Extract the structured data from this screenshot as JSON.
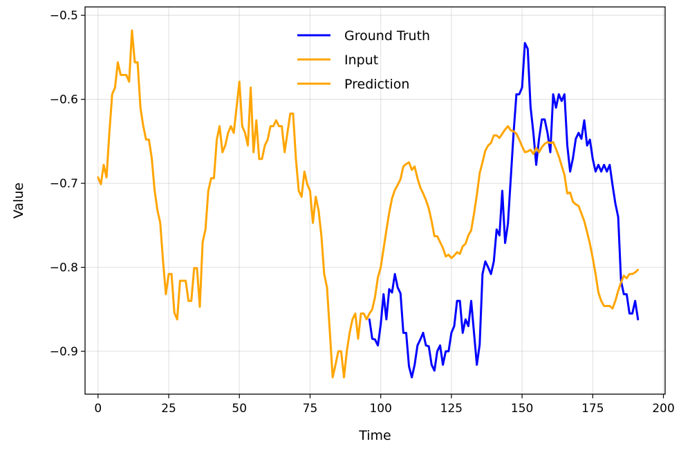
{
  "chart_data": {
    "type": "line",
    "title": "",
    "xlabel": "Time",
    "ylabel": "Value",
    "xlim": [
      -4.6,
      200.6
    ],
    "ylim": [
      -0.951,
      -0.49
    ],
    "xticks": [
      0,
      25,
      50,
      75,
      100,
      125,
      150,
      175,
      200
    ],
    "xtick_labels": [
      "0",
      "25",
      "50",
      "75",
      "100",
      "125",
      "150",
      "175",
      "200"
    ],
    "yticks": [
      -0.9,
      -0.8,
      -0.7,
      -0.6,
      -0.5
    ],
    "ytick_labels": [
      "−0.9",
      "−0.8",
      "−0.7",
      "−0.6",
      "−0.5"
    ],
    "grid": true,
    "legend_position": "upper center",
    "series": [
      {
        "name": "Ground Truth",
        "color": "#0000ff",
        "x": [
          96,
          97,
          98,
          99,
          100,
          101,
          102,
          103,
          104,
          105,
          106,
          107,
          108,
          109,
          110,
          111,
          112,
          113,
          114,
          115,
          116,
          117,
          118,
          119,
          120,
          121,
          122,
          123,
          124,
          125,
          126,
          127,
          128,
          129,
          130,
          131,
          132,
          133,
          134,
          135,
          136,
          137,
          138,
          139,
          140,
          141,
          142,
          143,
          144,
          145,
          146,
          147,
          148,
          149,
          150,
          151,
          152,
          153,
          154,
          155,
          156,
          157,
          158,
          159,
          160,
          161,
          162,
          163,
          164,
          165,
          166,
          167,
          168,
          169,
          170,
          171,
          172,
          173,
          174,
          175,
          176,
          177,
          178,
          179,
          180,
          181,
          182,
          183,
          184,
          185,
          186,
          187,
          188,
          189,
          190,
          191
        ],
        "y": [
          -0.862,
          -0.885,
          -0.886,
          -0.893,
          -0.868,
          -0.832,
          -0.862,
          -0.826,
          -0.83,
          -0.808,
          -0.824,
          -0.831,
          -0.878,
          -0.878,
          -0.918,
          -0.931,
          -0.916,
          -0.893,
          -0.886,
          -0.878,
          -0.893,
          -0.894,
          -0.916,
          -0.923,
          -0.9,
          -0.893,
          -0.916,
          -0.9,
          -0.9,
          -0.878,
          -0.87,
          -0.84,
          -0.84,
          -0.878,
          -0.862,
          -0.87,
          -0.84,
          -0.878,
          -0.916,
          -0.892,
          -0.808,
          -0.793,
          -0.8,
          -0.808,
          -0.793,
          -0.755,
          -0.762,
          -0.709,
          -0.771,
          -0.748,
          -0.694,
          -0.64,
          -0.594,
          -0.594,
          -0.586,
          -0.533,
          -0.54,
          -0.609,
          -0.64,
          -0.678,
          -0.647,
          -0.624,
          -0.624,
          -0.64,
          -0.663,
          -0.594,
          -0.61,
          -0.594,
          -0.602,
          -0.594,
          -0.655,
          -0.686,
          -0.67,
          -0.647,
          -0.64,
          -0.647,
          -0.625,
          -0.655,
          -0.648,
          -0.671,
          -0.686,
          -0.678,
          -0.686,
          -0.678,
          -0.686,
          -0.678,
          -0.702,
          -0.724,
          -0.74,
          -0.816,
          -0.832,
          -0.832,
          -0.855,
          -0.855,
          -0.84,
          -0.862
        ]
      },
      {
        "name": "Input",
        "color": "#ffa500",
        "x": [
          0,
          1,
          2,
          3,
          4,
          5,
          6,
          7,
          8,
          9,
          10,
          11,
          12,
          13,
          14,
          15,
          16,
          17,
          18,
          19,
          20,
          21,
          22,
          23,
          24,
          25,
          26,
          27,
          28,
          29,
          30,
          31,
          32,
          33,
          34,
          35,
          36,
          37,
          38,
          39,
          40,
          41,
          42,
          43,
          44,
          45,
          46,
          47,
          48,
          49,
          50,
          51,
          52,
          53,
          54,
          55,
          56,
          57,
          58,
          59,
          60,
          61,
          62,
          63,
          64,
          65,
          66,
          67,
          68,
          69,
          70,
          71,
          72,
          73,
          74,
          75,
          76,
          77,
          78,
          79,
          80,
          81,
          82,
          83,
          84,
          85,
          86,
          87,
          88,
          89,
          90,
          91,
          92,
          93,
          94,
          95,
          96
        ],
        "y": [
          -0.693,
          -0.701,
          -0.678,
          -0.693,
          -0.64,
          -0.594,
          -0.586,
          -0.556,
          -0.571,
          -0.571,
          -0.571,
          -0.579,
          -0.518,
          -0.556,
          -0.556,
          -0.61,
          -0.632,
          -0.648,
          -0.648,
          -0.67,
          -0.708,
          -0.732,
          -0.747,
          -0.793,
          -0.832,
          -0.808,
          -0.808,
          -0.854,
          -0.862,
          -0.816,
          -0.816,
          -0.816,
          -0.84,
          -0.84,
          -0.801,
          -0.801,
          -0.847,
          -0.77,
          -0.755,
          -0.709,
          -0.694,
          -0.694,
          -0.648,
          -0.632,
          -0.663,
          -0.655,
          -0.64,
          -0.632,
          -0.64,
          -0.61,
          -0.579,
          -0.632,
          -0.64,
          -0.655,
          -0.586,
          -0.663,
          -0.625,
          -0.671,
          -0.671,
          -0.655,
          -0.648,
          -0.632,
          -0.632,
          -0.625,
          -0.632,
          -0.632,
          -0.663,
          -0.64,
          -0.617,
          -0.617,
          -0.671,
          -0.709,
          -0.716,
          -0.686,
          -0.701,
          -0.709,
          -0.747,
          -0.716,
          -0.732,
          -0.762,
          -0.808,
          -0.824,
          -0.877,
          -0.931,
          -0.916,
          -0.9,
          -0.9,
          -0.931,
          -0.9,
          -0.878,
          -0.862,
          -0.855,
          -0.885,
          -0.855,
          -0.855,
          -0.862,
          -0.855
        ]
      },
      {
        "name": "Prediction",
        "color": "#ffa500",
        "x": [
          96,
          97,
          98,
          99,
          100,
          101,
          102,
          103,
          104,
          105,
          106,
          107,
          108,
          109,
          110,
          111,
          112,
          113,
          114,
          115,
          116,
          117,
          118,
          119,
          120,
          121,
          122,
          123,
          124,
          125,
          126,
          127,
          128,
          129,
          130,
          131,
          132,
          133,
          134,
          135,
          136,
          137,
          138,
          139,
          140,
          141,
          142,
          143,
          144,
          145,
          146,
          147,
          148,
          149,
          150,
          151,
          152,
          153,
          154,
          155,
          156,
          157,
          158,
          159,
          160,
          161,
          162,
          163,
          164,
          165,
          166,
          167,
          168,
          169,
          170,
          171,
          172,
          173,
          174,
          175,
          176,
          177,
          178,
          179,
          180,
          181,
          182,
          183,
          184,
          185,
          186,
          187,
          188,
          189,
          190,
          191
        ],
        "y": [
          -0.855,
          -0.85,
          -0.835,
          -0.812,
          -0.8,
          -0.778,
          -0.756,
          -0.735,
          -0.718,
          -0.708,
          -0.702,
          -0.695,
          -0.68,
          -0.677,
          -0.675,
          -0.684,
          -0.68,
          -0.694,
          -0.705,
          -0.712,
          -0.72,
          -0.73,
          -0.745,
          -0.763,
          -0.763,
          -0.77,
          -0.777,
          -0.787,
          -0.785,
          -0.789,
          -0.786,
          -0.782,
          -0.784,
          -0.775,
          -0.772,
          -0.762,
          -0.756,
          -0.736,
          -0.714,
          -0.688,
          -0.675,
          -0.661,
          -0.655,
          -0.652,
          -0.643,
          -0.643,
          -0.646,
          -0.641,
          -0.636,
          -0.632,
          -0.637,
          -0.638,
          -0.641,
          -0.648,
          -0.656,
          -0.663,
          -0.662,
          -0.66,
          -0.665,
          -0.658,
          -0.663,
          -0.657,
          -0.653,
          -0.651,
          -0.652,
          -0.651,
          -0.659,
          -0.668,
          -0.679,
          -0.69,
          -0.712,
          -0.711,
          -0.722,
          -0.725,
          -0.727,
          -0.736,
          -0.745,
          -0.758,
          -0.772,
          -0.789,
          -0.808,
          -0.83,
          -0.84,
          -0.846,
          -0.846,
          -0.846,
          -0.849,
          -0.84,
          -0.828,
          -0.818,
          -0.81,
          -0.813,
          -0.808,
          -0.808,
          -0.806,
          -0.803
        ]
      }
    ]
  }
}
